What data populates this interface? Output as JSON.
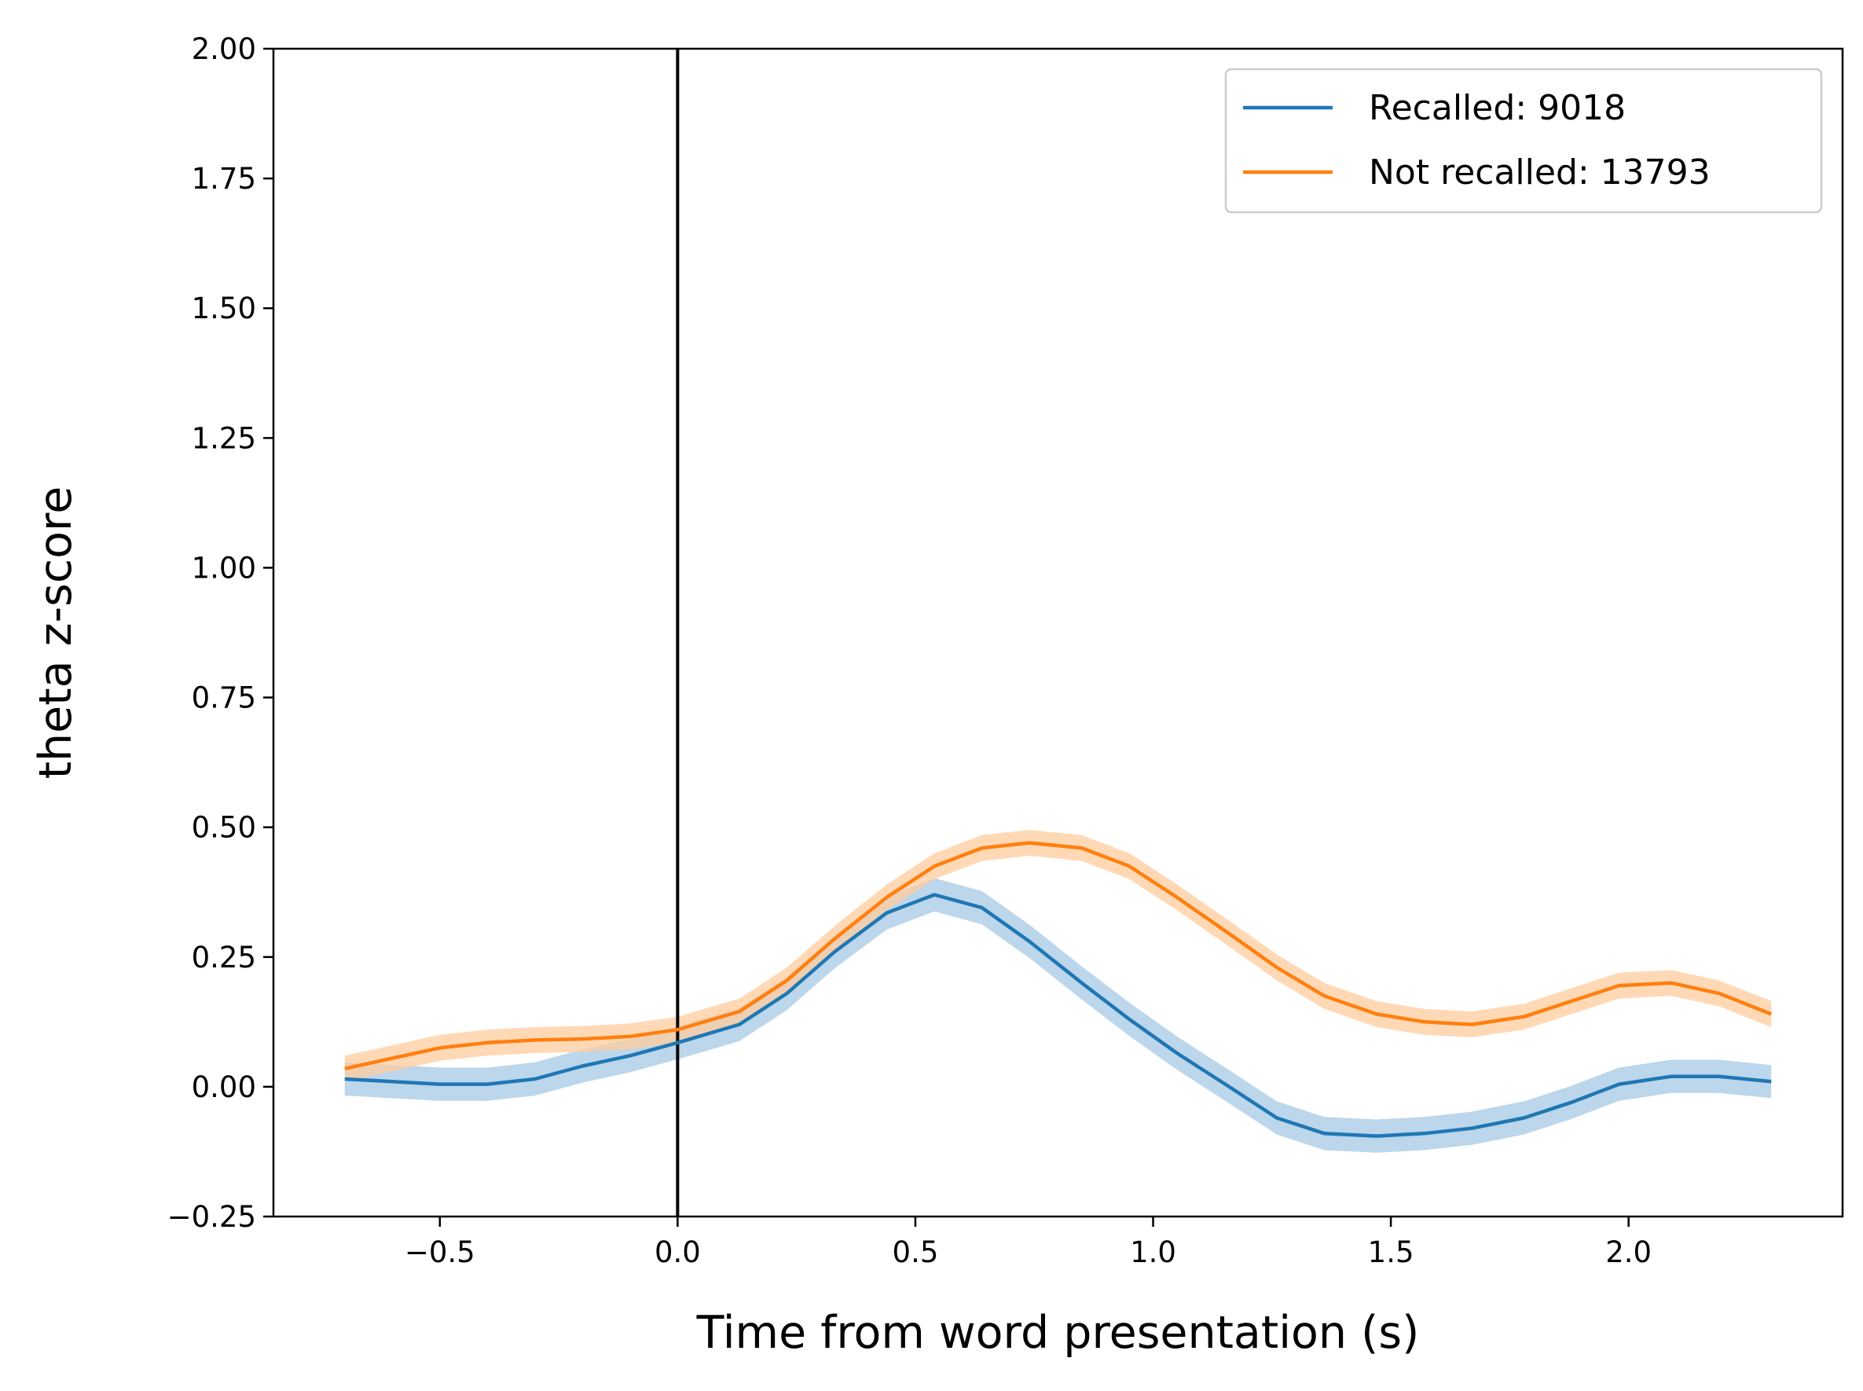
{
  "chart_data": {
    "type": "line",
    "title": "",
    "xlabel": "Time from word presentation (s)",
    "ylabel": "theta z-score",
    "xlim": [
      -0.85,
      2.45
    ],
    "ylim": [
      -0.25,
      2.0
    ],
    "xticks": [
      -0.5,
      0.0,
      0.5,
      1.0,
      1.5,
      2.0
    ],
    "xtick_labels": [
      "−0.5",
      "0.0",
      "0.5",
      "1.0",
      "1.5",
      "2.0"
    ],
    "yticks": [
      -0.25,
      0.0,
      0.25,
      0.5,
      0.75,
      1.0,
      1.25,
      1.5,
      1.75,
      2.0
    ],
    "ytick_labels": [
      "−0.25",
      "0.00",
      "0.25",
      "0.50",
      "0.75",
      "1.00",
      "1.25",
      "1.50",
      "1.75",
      "2.00"
    ],
    "grid": false,
    "legend_position": "top-right",
    "vline_x": 0.0,
    "vline_color": "#000000",
    "x": [
      -0.7,
      -0.6,
      -0.5,
      -0.4,
      -0.3,
      -0.2,
      -0.1,
      0.0,
      0.13,
      0.23,
      0.33,
      0.44,
      0.54,
      0.64,
      0.74,
      0.85,
      0.95,
      1.05,
      1.16,
      1.26,
      1.36,
      1.47,
      1.57,
      1.67,
      1.78,
      1.88,
      1.98,
      2.09,
      2.19,
      2.3
    ],
    "series": [
      {
        "name": "Recalled: 9018",
        "color": "#1f77b4",
        "band_color": "#a6c8e4",
        "values": [
          0.015,
          0.01,
          0.005,
          0.005,
          0.015,
          0.04,
          0.06,
          0.085,
          0.12,
          0.18,
          0.26,
          0.335,
          0.37,
          0.345,
          0.28,
          0.2,
          0.13,
          0.065,
          0.0,
          -0.06,
          -0.09,
          -0.095,
          -0.09,
          -0.08,
          -0.06,
          -0.03,
          0.005,
          0.02,
          0.02,
          0.01
        ],
        "band": 0.032
      },
      {
        "name": "Not recalled: 13793",
        "color": "#ff7f0e",
        "band_color": "#ffcc9e",
        "values": [
          0.035,
          0.055,
          0.075,
          0.085,
          0.09,
          0.092,
          0.097,
          0.11,
          0.145,
          0.205,
          0.285,
          0.365,
          0.425,
          0.46,
          0.47,
          0.46,
          0.425,
          0.365,
          0.295,
          0.23,
          0.175,
          0.14,
          0.125,
          0.12,
          0.135,
          0.165,
          0.195,
          0.2,
          0.18,
          0.14
        ],
        "band": 0.025
      }
    ]
  }
}
